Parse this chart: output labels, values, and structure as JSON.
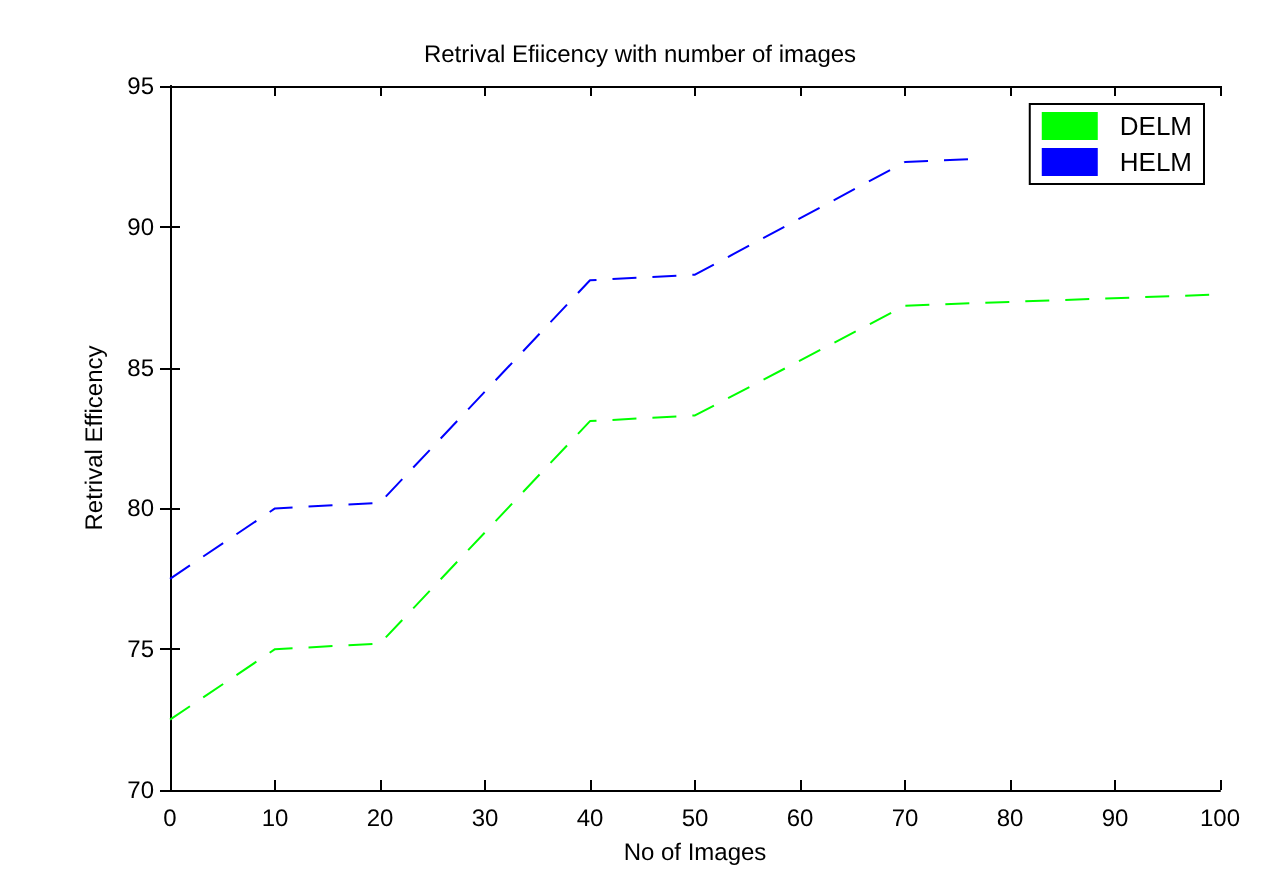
{
  "chart_data": {
    "type": "line",
    "title": "Retrival Efiicency with number of images",
    "xlabel": "No of Images",
    "ylabel": "Retrival Efficency",
    "series": [
      {
        "name": "DELM",
        "color": "#00ff00",
        "x": [
          0,
          10,
          20,
          40,
          50,
          70,
          100
        ],
        "values": [
          72.5,
          75,
          75.2,
          83.1,
          83.3,
          87.2,
          87.6
        ]
      },
      {
        "name": "HELM",
        "color": "#0000ff",
        "x": [
          0,
          10,
          20,
          40,
          50,
          70,
          76
        ],
        "values": [
          77.5,
          80,
          80.2,
          88.1,
          88.3,
          92.3,
          92.4
        ]
      }
    ],
    "xlim": [
      0,
      100
    ],
    "xticks": [
      0,
      10,
      20,
      30,
      40,
      50,
      60,
      70,
      80,
      90,
      100
    ],
    "ylim": [
      70,
      95
    ],
    "yticks": [
      70,
      75,
      80,
      85,
      90,
      95
    ],
    "grid": false,
    "legend": "top right",
    "marker": "none",
    "line_style": "dashed"
  }
}
